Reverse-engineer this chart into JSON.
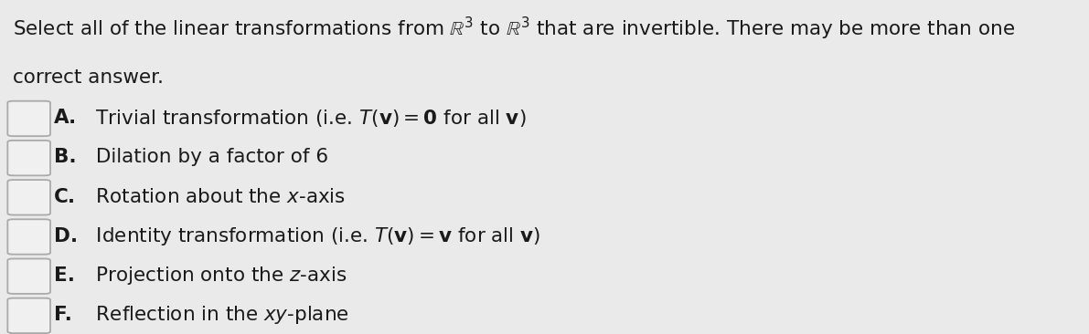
{
  "background_color": "#eaeaea",
  "title_line1": "Select all of the linear transformations from $\\mathbb{R}^3$ to $\\mathbb{R}^3$ that are invertible. There may be more than one",
  "title_line2": "correct answer.",
  "options": [
    {
      "label": "A.",
      "text": " Trivial transformation (i.e. $T(\\mathbf{v}) = \\mathbf{0}$ for all $\\mathbf{v}$)"
    },
    {
      "label": "B.",
      "text": " Dilation by a factor of 6"
    },
    {
      "label": "C.",
      "text": " Rotation about the $x$-axis"
    },
    {
      "label": "D.",
      "text": " Identity transformation (i.e. $T(\\mathbf{v}) = \\mathbf{v}$ for all $\\mathbf{v}$)"
    },
    {
      "label": "E.",
      "text": " Projection onto the $z$-axis"
    },
    {
      "label": "F.",
      "text": " Reflection in the $xy$-plane"
    }
  ],
  "text_fontsize": 15.5,
  "label_fontsize": 15.5,
  "title_fontsize": 15.5,
  "text_color": "#1a1a1a",
  "checkbox_edge_color": "#aaaaaa",
  "checkbox_face_color": "#f0f0f0"
}
